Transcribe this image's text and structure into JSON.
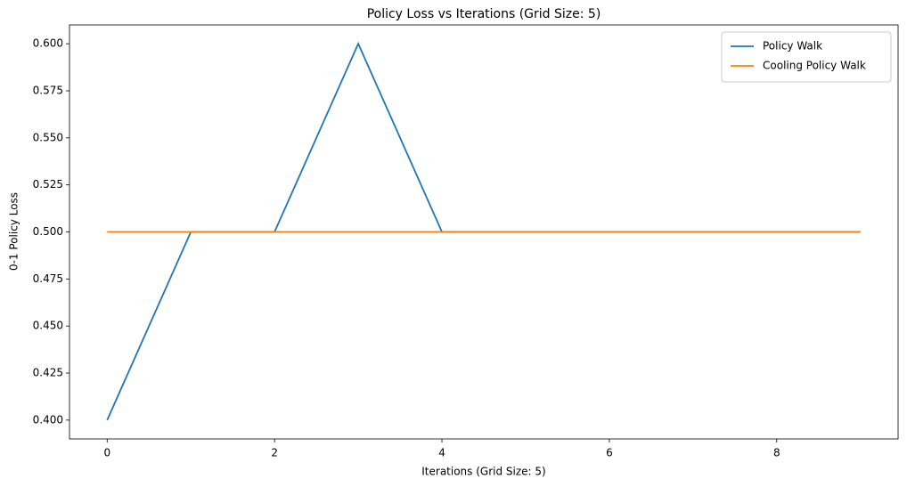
{
  "chart_data": {
    "type": "line",
    "title": "Policy Loss vs Iterations (Grid Size: 5)",
    "x_label": "Iterations (Grid Size: 5)",
    "y_label": "0-1 Policy Loss",
    "x": [
      0,
      1,
      2,
      3,
      4,
      5,
      6,
      7,
      8,
      9
    ],
    "series": [
      {
        "name": "Policy Walk",
        "color": "#1f77b4",
        "values": [
          0.4,
          0.5,
          0.5,
          0.6,
          0.5,
          0.5,
          0.5,
          0.5,
          0.5,
          0.5
        ]
      },
      {
        "name": "Cooling Policy Walk",
        "color": "#ff7f0e",
        "values": [
          0.5,
          0.5,
          0.5,
          0.5,
          0.5,
          0.5,
          0.5,
          0.5,
          0.5,
          0.5
        ]
      }
    ],
    "xlim": [
      -0.45,
      9.45
    ],
    "xticks": [
      0,
      2,
      4,
      6,
      8
    ],
    "ylim": [
      0.39,
      0.61
    ],
    "yticks": [
      {
        "value": 0.4,
        "label": "0.400"
      },
      {
        "value": 0.425,
        "label": "0.425"
      },
      {
        "value": 0.45,
        "label": "0.450"
      },
      {
        "value": 0.475,
        "label": "0.475"
      },
      {
        "value": 0.5,
        "label": "0.500"
      },
      {
        "value": 0.525,
        "label": "0.525"
      },
      {
        "value": 0.55,
        "label": "0.550"
      },
      {
        "value": 0.575,
        "label": "0.575"
      },
      {
        "value": 0.6,
        "label": "0.600"
      }
    ],
    "legend": "upper right"
  }
}
